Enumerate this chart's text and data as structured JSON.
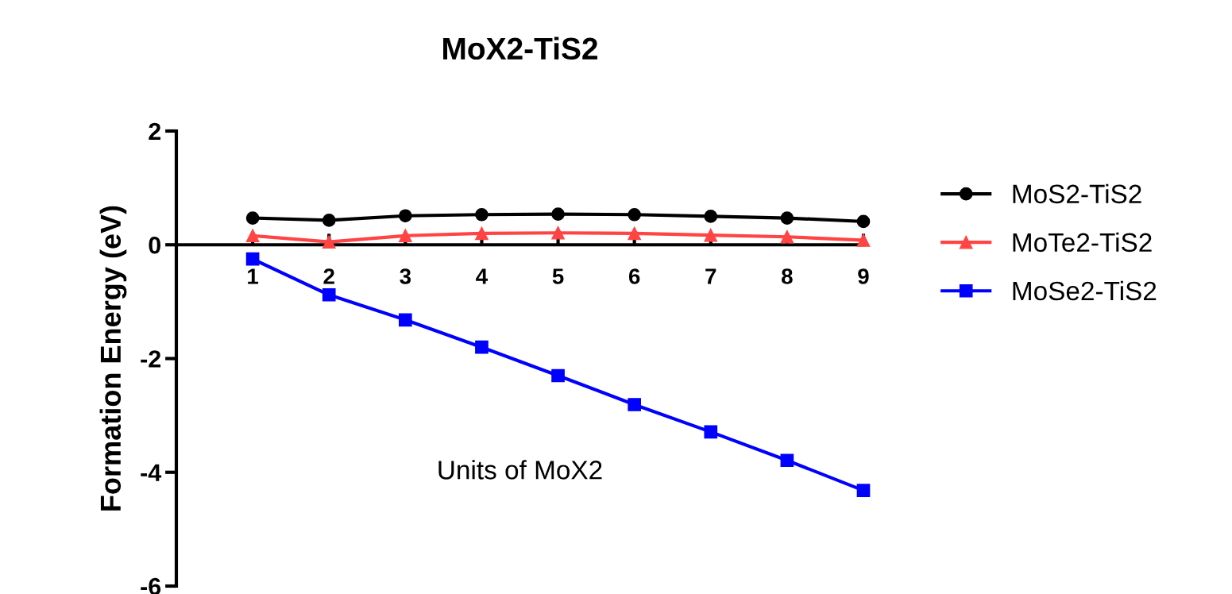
{
  "chart_data": {
    "type": "line",
    "title": "MoX2-TiS2",
    "xlabel": "Units of MoX2",
    "ylabel": "Formation Energy (eV)",
    "x": [
      1,
      2,
      3,
      4,
      5,
      6,
      7,
      8,
      9
    ],
    "series": [
      {
        "name": "MoS2-TiS2",
        "color": "#000000",
        "marker": "circle",
        "values": [
          0.47,
          0.43,
          0.51,
          0.53,
          0.54,
          0.53,
          0.5,
          0.47,
          0.41
        ]
      },
      {
        "name": "MoTe2-TiS2",
        "color": "#ff4444",
        "marker": "triangle",
        "values": [
          0.16,
          0.05,
          0.16,
          0.2,
          0.21,
          0.2,
          0.17,
          0.14,
          0.08
        ]
      },
      {
        "name": "MoSe2-TiS2",
        "color": "#0000ff",
        "marker": "square",
        "values": [
          -0.25,
          -0.88,
          -1.32,
          -1.8,
          -2.3,
          -2.81,
          -3.29,
          -3.79,
          -4.32
        ]
      }
    ],
    "xlim": [
      0,
      9
    ],
    "xticks": [
      1,
      2,
      3,
      4,
      5,
      6,
      7,
      8,
      9
    ],
    "ylim": [
      -6,
      2
    ],
    "yticks": [
      -6,
      -4,
      -2,
      0,
      2
    ],
    "grid": false,
    "legend": "right",
    "line_style": "solid"
  }
}
